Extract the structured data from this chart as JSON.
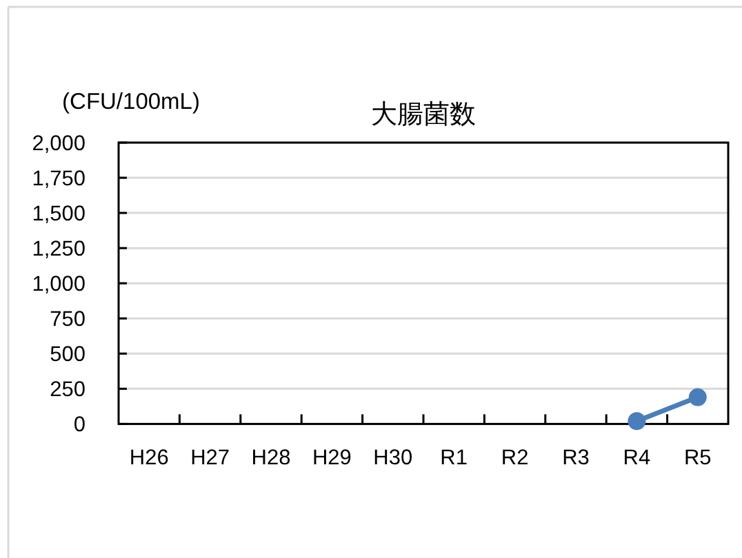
{
  "chart_data": {
    "type": "line",
    "title": "大腸菌数",
    "ylabel": "(CFU/100mL)",
    "categories": [
      "H26",
      "H27",
      "H28",
      "H29",
      "H30",
      "R1",
      "R2",
      "R3",
      "R4",
      "R5"
    ],
    "series": [
      {
        "color": "#4a7ebb",
        "values": [
          null,
          null,
          null,
          null,
          null,
          null,
          null,
          null,
          20,
          190
        ]
      }
    ],
    "ylim": [
      0,
      2000
    ],
    "yticks": [
      0,
      250,
      500,
      750,
      {
        "value": 1000,
        "label": "1,000"
      },
      {
        "value": 1250,
        "label": "1,250"
      },
      {
        "value": 1500,
        "label": "1,500"
      },
      {
        "value": 1750,
        "label": "1,750"
      },
      {
        "value": 2000,
        "label": "2,000"
      }
    ],
    "grid": "y",
    "marker": "circle",
    "line_style": "solid"
  }
}
